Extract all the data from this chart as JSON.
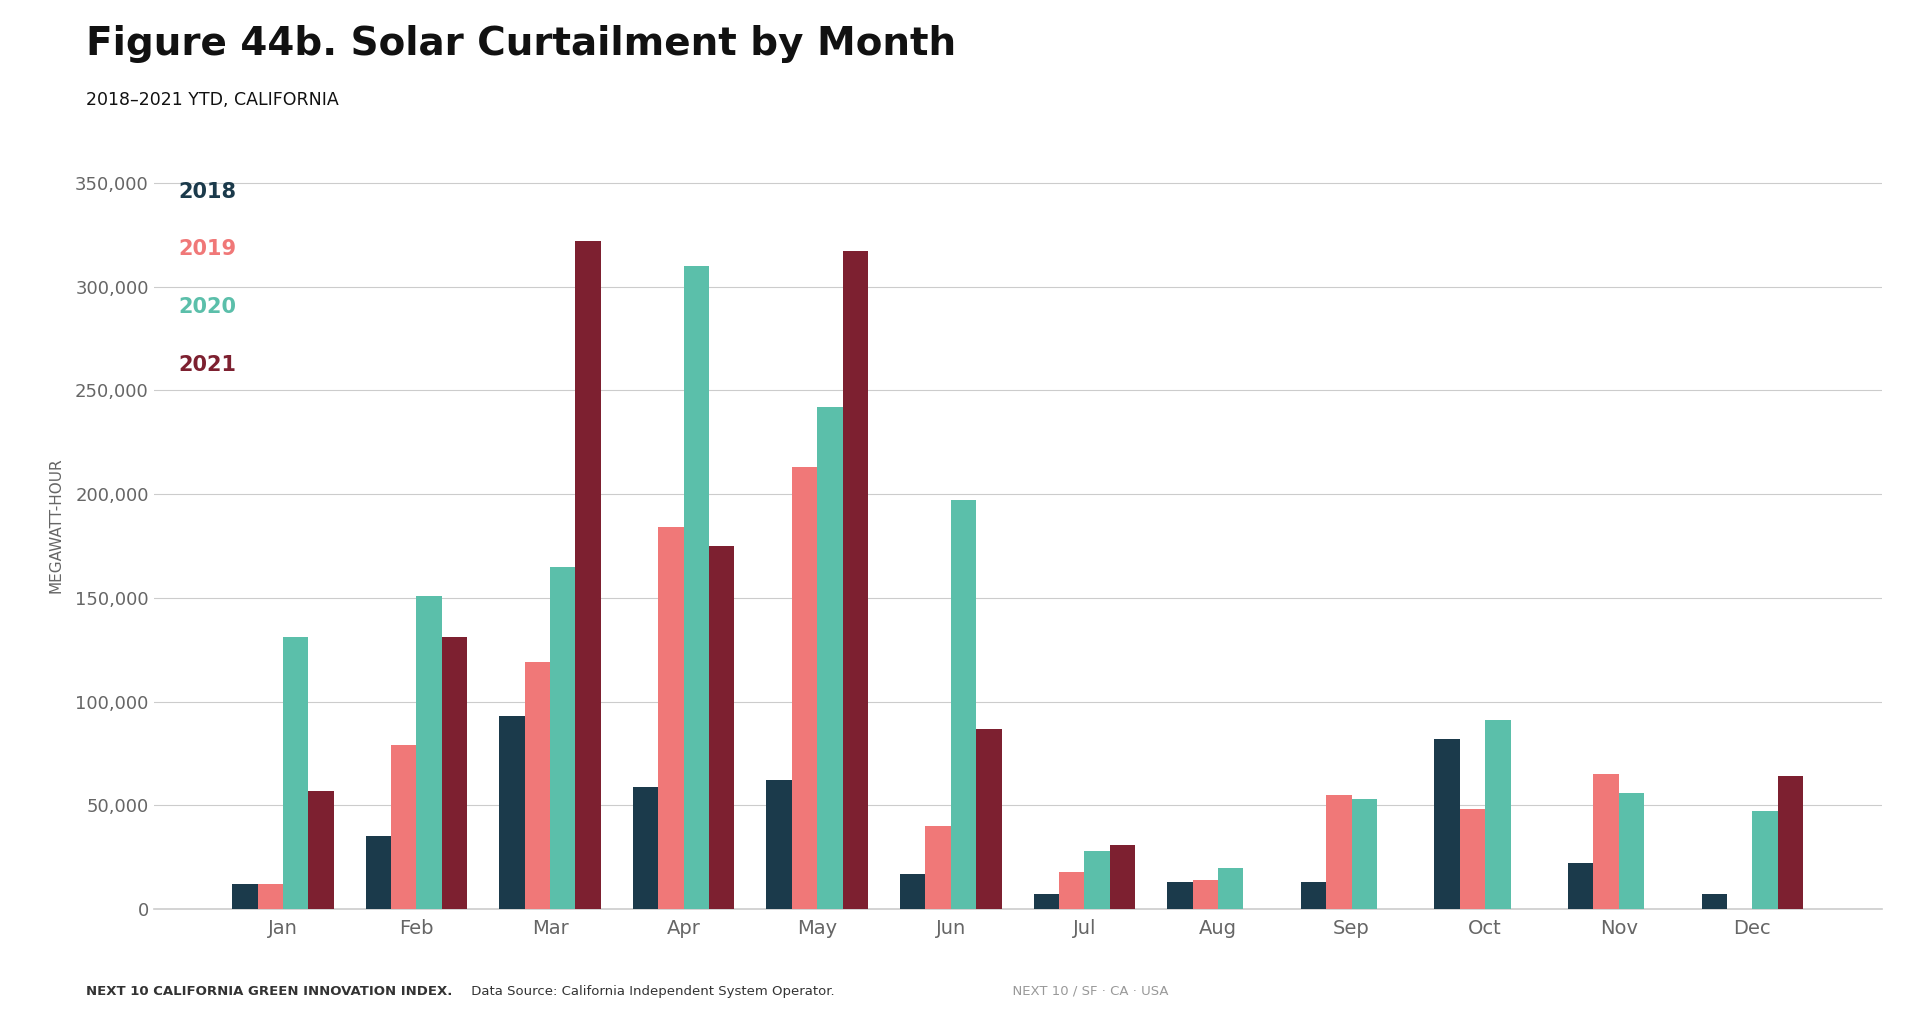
{
  "title": "Figure 44b. Solar Curtailment by Month",
  "subtitle": "2018–2021 YTD, CALIFORNIA",
  "ylabel": "MEGAWATT-HOUR",
  "footer_bold": "NEXT 10 CALIFORNIA GREEN INNOVATION INDEX.",
  "footer_normal": " Data Source: California Independent System Operator.",
  "footer_light": "  NEXT 10 / SF · CA · USA",
  "months": [
    "Jan",
    "Feb",
    "Mar",
    "Apr",
    "May",
    "Jun",
    "Jul",
    "Aug",
    "Sep",
    "Oct",
    "Nov",
    "Dec"
  ],
  "years": [
    "2018",
    "2019",
    "2020",
    "2021"
  ],
  "colors": {
    "2018": "#1b3a4b",
    "2019": "#f07878",
    "2020": "#5bbfaa",
    "2021": "#7d2030"
  },
  "data": {
    "2018": [
      12000,
      35000,
      93000,
      59000,
      62000,
      17000,
      7000,
      13000,
      13000,
      82000,
      22000,
      7000
    ],
    "2019": [
      12000,
      79000,
      119000,
      184000,
      213000,
      40000,
      18000,
      14000,
      55000,
      48000,
      65000,
      0
    ],
    "2020": [
      131000,
      151000,
      165000,
      310000,
      242000,
      197000,
      28000,
      20000,
      53000,
      91000,
      56000,
      47000
    ],
    "2021": [
      57000,
      131000,
      322000,
      175000,
      317000,
      87000,
      31000,
      0,
      0,
      0,
      0,
      64000
    ]
  },
  "ylim": [
    0,
    370000
  ],
  "yticks": [
    0,
    50000,
    100000,
    150000,
    200000,
    250000,
    300000,
    350000
  ],
  "background_color": "#ffffff",
  "grid_color": "#cccccc",
  "title_color": "#111111",
  "subtitle_color": "#111111",
  "tick_color": "#666666",
  "bar_width": 0.19
}
